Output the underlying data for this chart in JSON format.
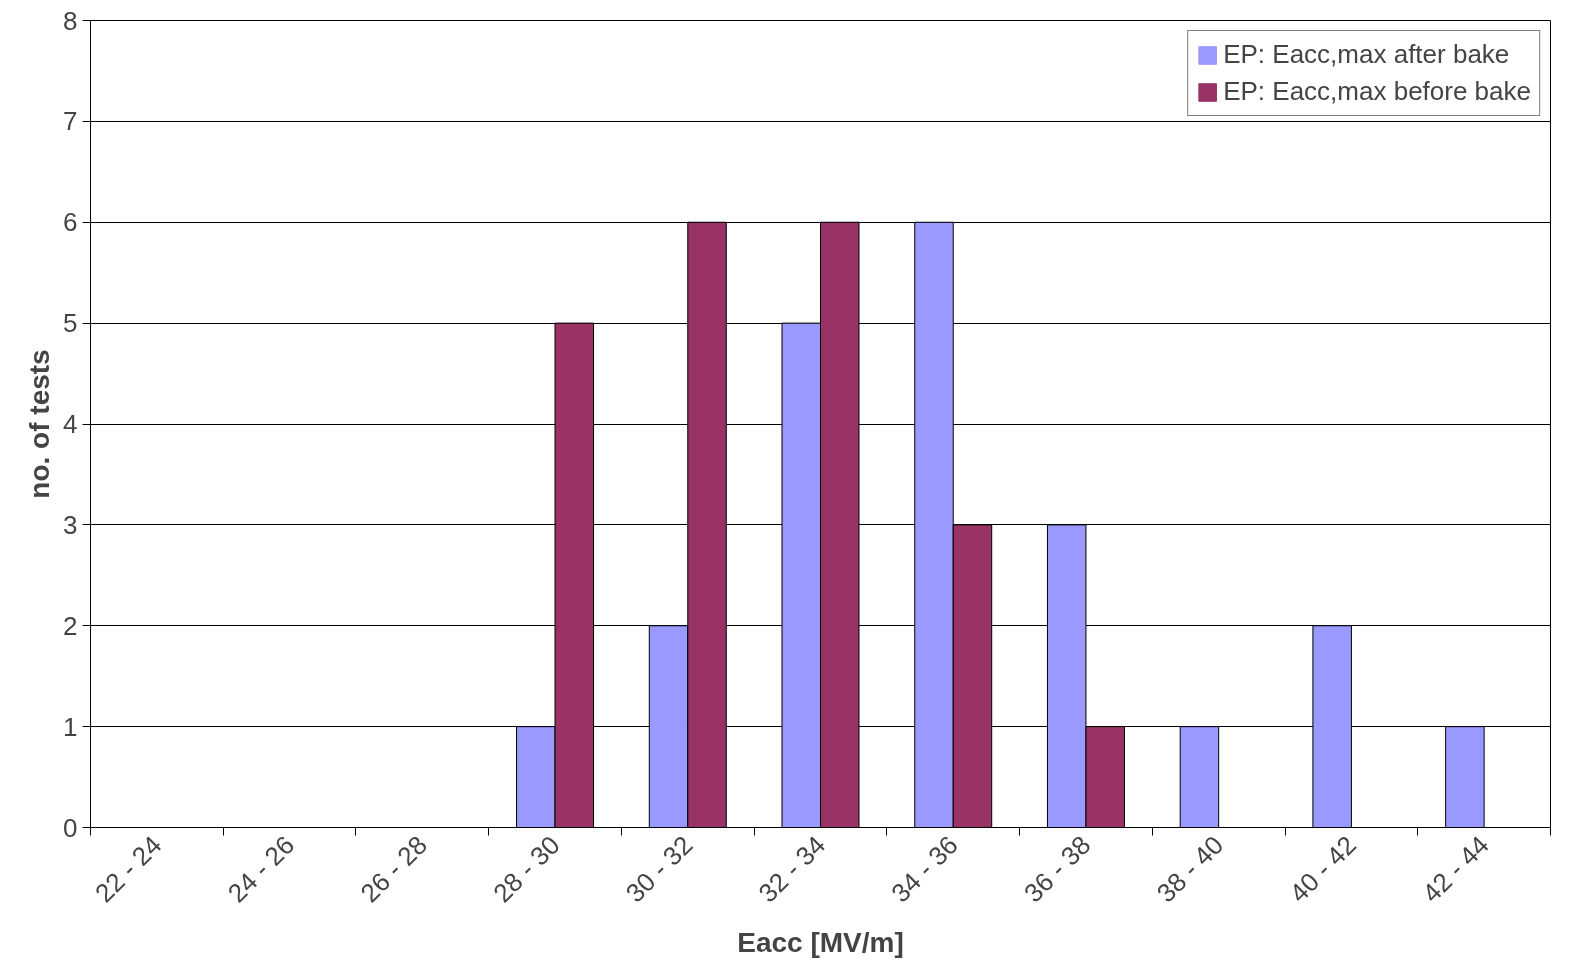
{
  "chart_data": {
    "type": "bar",
    "xlabel": "Eacc [MV/m]",
    "ylabel": "no. of tests",
    "categories": [
      "22 - 24",
      "24 - 26",
      "26 - 28",
      "28 - 30",
      "30 - 32",
      "32 - 34",
      "34 - 36",
      "36 - 38",
      "38 - 40",
      "40 - 42",
      "42 - 44"
    ],
    "series": [
      {
        "name": "EP: Eacc,max after bake",
        "color": "#9999ff",
        "values": [
          0,
          0,
          0,
          1,
          2,
          5,
          6,
          3,
          1,
          2,
          1
        ]
      },
      {
        "name": "EP: Eacc,max before bake",
        "color": "#993366",
        "values": [
          0,
          0,
          0,
          5,
          6,
          6,
          3,
          1,
          0,
          0,
          0
        ]
      }
    ],
    "ylim": [
      0,
      8
    ],
    "yticks": [
      0,
      1,
      2,
      3,
      4,
      5,
      6,
      7,
      8
    ],
    "grid": "y",
    "legend": "top right"
  }
}
